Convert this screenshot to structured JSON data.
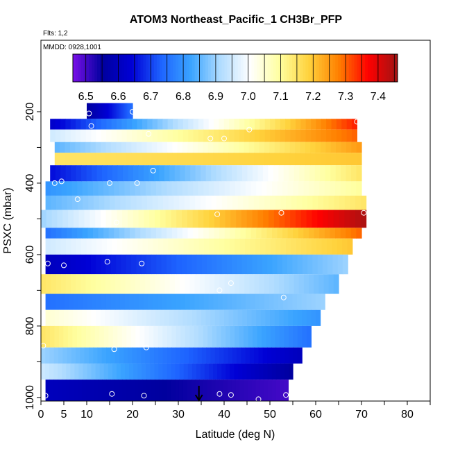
{
  "chart_data": {
    "type": "heatmap",
    "title": "ATOM3 Northeast_Pacific_1 CH3Br_PFP",
    "flights_label": "Flts: 1,2",
    "dates_label": "MMDD: 0928,1001",
    "xlabel": "Latitude (deg N)",
    "ylabel": "PSXC (mbar)",
    "xlim": [
      0,
      85
    ],
    "ylim": [
      1010,
      0
    ],
    "x_ticks": [
      0,
      5,
      10,
      20,
      30,
      40,
      50,
      60,
      70,
      80
    ],
    "y_ticks": [
      200,
      400,
      600,
      800,
      1000
    ],
    "colorbar": {
      "min": 6.46,
      "max": 7.46,
      "ticks": [
        6.5,
        6.6,
        6.7,
        6.8,
        6.9,
        7.0,
        7.1,
        7.2,
        7.3,
        7.4
      ],
      "tick_labels": [
        "6.5",
        "6.6",
        "6.7",
        "6.8",
        "6.9",
        "7.0",
        "7.1",
        "7.2",
        "7.3",
        "7.4"
      ],
      "colors": [
        "#7a10e8",
        "#00009e",
        "#0000d6",
        "#1e64ff",
        "#3aa4ff",
        "#b0dcff",
        "#ffffff",
        "#ffffa0",
        "#ffd23c",
        "#ff8000",
        "#ff0000",
        "#a01414"
      ]
    },
    "marker_latitude": 34.5,
    "bands": [
      {
        "p0": 176,
        "p1": 220,
        "lat0": 10,
        "lat1": 20,
        "v0": 6.55,
        "v1": 6.75
      },
      {
        "p0": 220,
        "p1": 250,
        "lat0": 2,
        "lat1": 69,
        "v0": 6.62,
        "v1": 7.35
      },
      {
        "p0": 250,
        "p1": 285,
        "lat0": 2,
        "lat1": 69,
        "v0": 6.95,
        "v1": 7.3
      },
      {
        "p0": 285,
        "p1": 315,
        "lat0": 3,
        "lat1": 70,
        "v0": 6.85,
        "v1": 7.25
      },
      {
        "p0": 315,
        "p1": 350,
        "lat0": 3,
        "lat1": 70,
        "v0": 7.15,
        "v1": 7.2
      },
      {
        "p0": 350,
        "p1": 395,
        "lat0": 2,
        "lat1": 70,
        "v0": 6.65,
        "v1": 7.15
      },
      {
        "p0": 395,
        "p1": 435,
        "lat0": 1,
        "lat1": 70,
        "v0": 6.8,
        "v1": 7.1
      },
      {
        "p0": 435,
        "p1": 475,
        "lat0": 1,
        "lat1": 71,
        "v0": 6.85,
        "v1": 7.15
      },
      {
        "p0": 475,
        "p1": 525,
        "lat0": 0,
        "lat1": 71,
        "v0": 6.9,
        "v1": 7.45
      },
      {
        "p0": 525,
        "p1": 555,
        "lat0": 1,
        "lat1": 70,
        "v0": 6.75,
        "v1": 7.3
      },
      {
        "p0": 555,
        "p1": 600,
        "lat0": 1,
        "lat1": 68,
        "v0": 6.95,
        "v1": 7.2
      },
      {
        "p0": 600,
        "p1": 655,
        "lat0": 1,
        "lat1": 67,
        "v0": 6.6,
        "v1": 6.9
      },
      {
        "p0": 655,
        "p1": 710,
        "lat0": 0,
        "lat1": 65,
        "v0": 7.15,
        "v1": 6.85
      },
      {
        "p0": 710,
        "p1": 755,
        "lat0": 1,
        "lat1": 62,
        "v0": 6.75,
        "v1": 6.9
      },
      {
        "p0": 755,
        "p1": 800,
        "lat0": 1,
        "lat1": 61,
        "v0": 7.05,
        "v1": 6.8
      },
      {
        "p0": 800,
        "p1": 860,
        "lat0": 0,
        "lat1": 59,
        "v0": 7.15,
        "v1": 6.75
      },
      {
        "p0": 860,
        "p1": 905,
        "lat0": 0,
        "lat1": 57,
        "v0": 6.9,
        "v1": 6.6
      },
      {
        "p0": 905,
        "p1": 950,
        "lat0": 0,
        "lat1": 55,
        "v0": 6.95,
        "v1": 6.55
      },
      {
        "p0": 950,
        "p1": 1010,
        "lat0": 1,
        "lat1": 54,
        "v0": 6.6,
        "v1": 6.5
      }
    ],
    "points": [
      {
        "lat": 1.5,
        "p": 215
      },
      {
        "lat": 10.5,
        "p": 205
      },
      {
        "lat": 11,
        "p": 240
      },
      {
        "lat": 20,
        "p": 200
      },
      {
        "lat": 23.5,
        "p": 262
      },
      {
        "lat": 37,
        "p": 275
      },
      {
        "lat": 40,
        "p": 275
      },
      {
        "lat": 45.5,
        "p": 250
      },
      {
        "lat": 69,
        "p": 228
      },
      {
        "lat": 3,
        "p": 400
      },
      {
        "lat": 4.5,
        "p": 395
      },
      {
        "lat": 8,
        "p": 445
      },
      {
        "lat": 15,
        "p": 400
      },
      {
        "lat": 21,
        "p": 400
      },
      {
        "lat": 24.5,
        "p": 365
      },
      {
        "lat": 16.5,
        "p": 510
      },
      {
        "lat": 38.5,
        "p": 487
      },
      {
        "lat": 52.5,
        "p": 483
      },
      {
        "lat": 70.5,
        "p": 483
      },
      {
        "lat": 1.5,
        "p": 625
      },
      {
        "lat": 5,
        "p": 630
      },
      {
        "lat": 14.5,
        "p": 620
      },
      {
        "lat": 22,
        "p": 625
      },
      {
        "lat": 39,
        "p": 700
      },
      {
        "lat": 41.5,
        "p": 680
      },
      {
        "lat": 53,
        "p": 720
      },
      {
        "lat": 0.5,
        "p": 855
      },
      {
        "lat": 16,
        "p": 865
      },
      {
        "lat": 23,
        "p": 860
      },
      {
        "lat": 1,
        "p": 995
      },
      {
        "lat": 15.5,
        "p": 990
      },
      {
        "lat": 22.5,
        "p": 995
      },
      {
        "lat": 39,
        "p": 990
      },
      {
        "lat": 41.5,
        "p": 993
      },
      {
        "lat": 47.5,
        "p": 1005
      },
      {
        "lat": 53.5,
        "p": 993
      }
    ]
  }
}
